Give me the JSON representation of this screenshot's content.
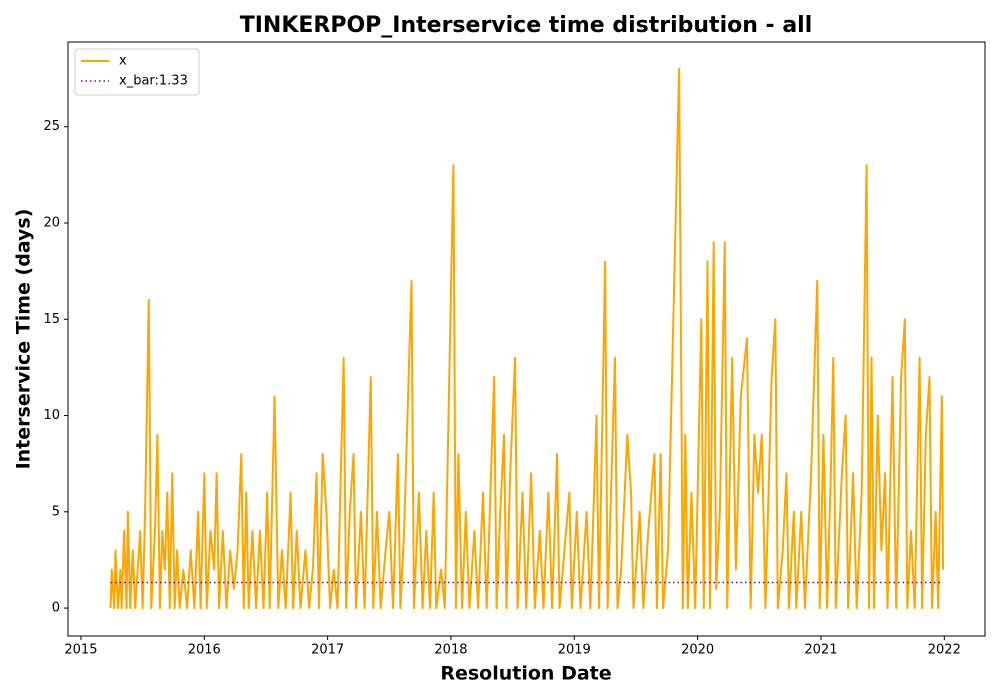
{
  "chart_data": {
    "type": "line",
    "title": "TINKERPOP_Interservice time distribution - all",
    "xlabel": "Resolution Date",
    "ylabel": "Interservice Time (days)",
    "xlim": [
      2014.895,
      2022.33
    ],
    "xticks": [
      2015,
      2016,
      2017,
      2018,
      2019,
      2020,
      2021,
      2022
    ],
    "ylim": [
      -1.45,
      29.4
    ],
    "yticks": [
      0,
      5,
      10,
      15,
      20,
      25
    ],
    "legend": "upper left",
    "grid": false,
    "series": [
      {
        "name": "x",
        "color": "#ffa500",
        "style": "solid",
        "x": [
          2015.24,
          2015.25,
          2015.27,
          2015.28,
          2015.3,
          2015.32,
          2015.33,
          2015.35,
          2015.37,
          2015.38,
          2015.4,
          2015.42,
          2015.44,
          2015.46,
          2015.48,
          2015.5,
          2015.52,
          2015.55,
          2015.57,
          2015.6,
          2015.62,
          2015.64,
          2015.66,
          2015.68,
          2015.7,
          2015.72,
          2015.74,
          2015.76,
          2015.78,
          2015.8,
          2015.83,
          2015.86,
          2015.89,
          2015.92,
          2015.95,
          2015.97,
          2016.0,
          2016.02,
          2016.05,
          2016.08,
          2016.1,
          2016.12,
          2016.15,
          2016.18,
          2016.21,
          2016.24,
          2016.27,
          2016.3,
          2016.32,
          2016.34,
          2016.36,
          2016.39,
          2016.42,
          2016.45,
          2016.48,
          2016.51,
          2016.53,
          2016.57,
          2016.6,
          2016.63,
          2016.66,
          2016.7,
          2016.72,
          2016.75,
          2016.78,
          2016.82,
          2016.85,
          2016.88,
          2016.91,
          2016.93,
          2016.96,
          2016.99,
          2017.02,
          2017.05,
          2017.08,
          2017.13,
          2017.15,
          2017.18,
          2017.21,
          2017.23,
          2017.27,
          2017.3,
          2017.35,
          2017.37,
          2017.4,
          2017.43,
          2017.47,
          2017.5,
          2017.53,
          2017.57,
          2017.59,
          2017.62,
          2017.68,
          2017.7,
          2017.74,
          2017.77,
          2017.8,
          2017.83,
          2017.86,
          2017.88,
          2017.92,
          2017.95,
          2018.02,
          2018.04,
          2018.06,
          2018.09,
          2018.12,
          2018.15,
          2018.19,
          2018.22,
          2018.26,
          2018.29,
          2018.35,
          2018.37,
          2018.4,
          2018.43,
          2018.45,
          2018.48,
          2018.52,
          2018.54,
          2018.58,
          2018.61,
          2018.65,
          2018.68,
          2018.72,
          2018.75,
          2018.79,
          2018.82,
          2018.86,
          2018.88,
          2018.92,
          2018.96,
          2018.98,
          2019.02,
          2019.05,
          2019.1,
          2019.13,
          2019.18,
          2019.2,
          2019.25,
          2019.27,
          2019.33,
          2019.35,
          2019.38,
          2019.43,
          2019.46,
          2019.48,
          2019.53,
          2019.56,
          2019.6,
          2019.65,
          2019.67,
          2019.7,
          2019.72,
          2019.76,
          2019.85,
          2019.88,
          2019.9,
          2019.92,
          2019.95,
          2019.98,
          2020.03,
          2020.05,
          2020.08,
          2020.1,
          2020.13,
          2020.15,
          2020.18,
          2020.22,
          2020.24,
          2020.28,
          2020.31,
          2020.35,
          2020.4,
          2020.43,
          2020.46,
          2020.49,
          2020.52,
          2020.55,
          2020.6,
          2020.63,
          2020.65,
          2020.69,
          2020.72,
          2020.74,
          2020.78,
          2020.8,
          2020.84,
          2020.87,
          2020.92,
          2020.97,
          2020.99,
          2021.02,
          2021.05,
          2021.08,
          2021.1,
          2021.12,
          2021.17,
          2021.2,
          2021.22,
          2021.26,
          2021.29,
          2021.33,
          2021.37,
          2021.39,
          2021.41,
          2021.43,
          2021.46,
          2021.49,
          2021.52,
          2021.54,
          2021.58,
          2021.61,
          2021.65,
          2021.68,
          2021.7,
          2021.73,
          2021.76,
          2021.8,
          2021.82,
          2021.85,
          2021.88,
          2021.9,
          2021.93,
          2021.95,
          2021.98,
          2021.99
        ],
        "values": [
          0,
          2,
          0,
          3,
          0,
          2,
          0,
          4,
          0,
          5,
          0,
          3,
          0,
          2,
          4,
          0,
          5,
          16,
          0,
          4,
          9,
          0,
          4,
          2,
          6,
          0,
          7,
          0,
          3,
          0,
          2,
          0,
          3,
          0,
          5,
          0,
          7,
          0,
          4,
          2,
          7,
          0,
          4,
          0,
          3,
          1,
          3,
          8,
          0,
          6,
          0,
          4,
          0,
          4,
          0,
          6,
          0,
          11,
          0,
          3,
          0,
          6,
          0,
          4,
          0,
          3,
          0,
          2,
          7,
          0,
          8,
          5,
          0,
          2,
          0,
          13,
          0,
          5,
          8,
          0,
          5,
          0,
          12,
          0,
          5,
          0,
          3,
          5,
          0,
          8,
          0,
          4,
          17,
          0,
          6,
          0,
          4,
          0,
          6,
          0,
          2,
          0,
          23,
          0,
          8,
          0,
          5,
          0,
          4,
          0,
          6,
          0,
          12,
          0,
          5,
          9,
          0,
          7,
          13,
          0,
          6,
          0,
          7,
          0,
          4,
          0,
          6,
          0,
          8,
          0,
          3,
          6,
          0,
          5,
          0,
          5,
          0,
          10,
          0,
          18,
          0,
          13,
          0,
          2,
          9,
          6,
          0,
          5,
          0,
          4,
          8,
          0,
          8,
          0,
          3,
          28,
          0,
          9,
          0,
          6,
          0,
          15,
          0,
          18,
          0,
          19,
          1,
          5,
          19,
          0,
          13,
          2,
          11,
          14,
          0,
          9,
          6,
          9,
          0,
          12,
          15,
          0,
          3,
          7,
          0,
          5,
          0,
          5,
          0,
          7,
          17,
          0,
          9,
          0,
          7,
          13,
          0,
          7,
          10,
          0,
          7,
          0,
          6,
          23,
          0,
          13,
          0,
          10,
          3,
          7,
          0,
          12,
          0,
          12,
          15,
          0,
          4,
          0,
          13,
          0,
          9,
          12,
          0,
          5,
          0,
          11,
          2
        ]
      },
      {
        "name": "x_bar:1.33",
        "color": "#800080",
        "style": "dotted",
        "x": [
          2015.24,
          2021.99
        ],
        "values": [
          1.33,
          1.33
        ]
      }
    ]
  }
}
